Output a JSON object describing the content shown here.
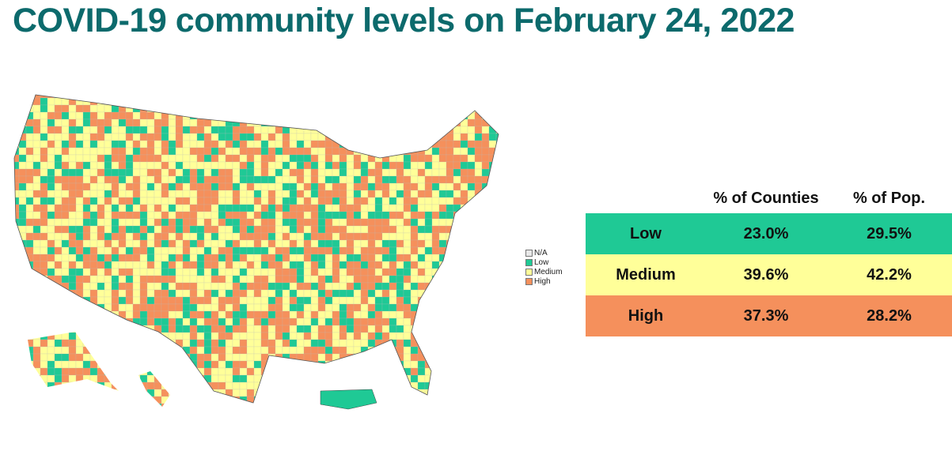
{
  "title": "COVID-19 community levels on February 24, 2022",
  "legend": {
    "items": [
      "N/A",
      "Low",
      "Medium",
      "High"
    ]
  },
  "table": {
    "header": [
      "% of Counties",
      "% of Pop."
    ],
    "rows": [
      [
        "Low",
        "23.0%",
        "29.5%"
      ],
      [
        "Medium",
        "39.6%",
        "42.2%"
      ],
      [
        "High",
        "37.3%",
        "28.2%"
      ]
    ]
  }
}
